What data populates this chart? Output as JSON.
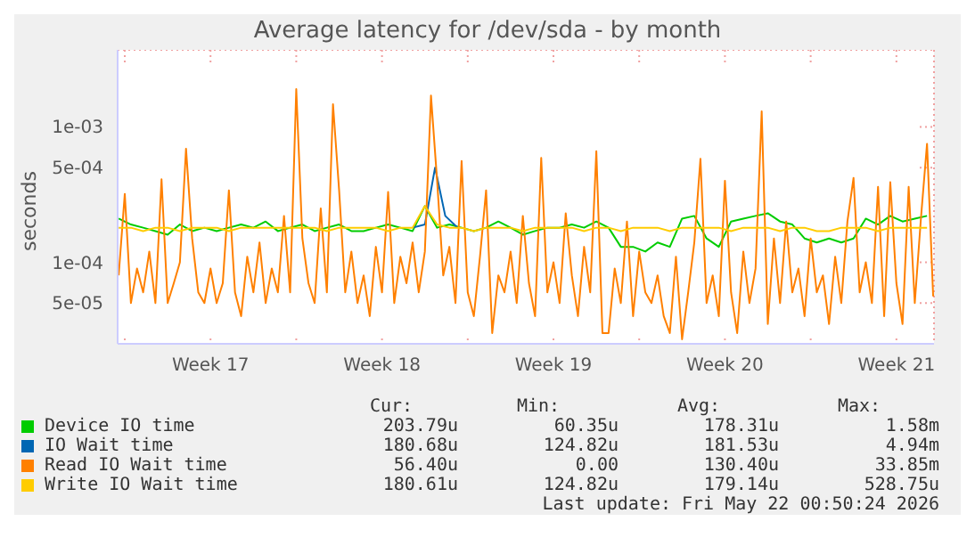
{
  "chart_data": {
    "type": "line",
    "title": "Average latency for /dev/sda - by month",
    "ylabel": "seconds",
    "log": "y",
    "grid": true,
    "legend": "bottom",
    "marker": "none",
    "line_style": "solid",
    "xlim": [
      "2026-04-18T17:00",
      "2026-05-22T00:50"
    ],
    "xticks": [
      {
        "value": "2026-04-19",
        "label": null
      },
      {
        "value": "2026-04-22T12:00",
        "label": "Week 17"
      },
      {
        "value": "2026-04-26",
        "label": null
      },
      {
        "value": "2026-04-29T12:00",
        "label": "Week 18"
      },
      {
        "value": "2026-05-03",
        "label": null
      },
      {
        "value": "2026-05-06T12:00",
        "label": "Week 19"
      },
      {
        "value": "2026-05-10",
        "label": null
      },
      {
        "value": "2026-05-13T12:00",
        "label": "Week 20"
      },
      {
        "value": "2026-05-17",
        "label": null
      },
      {
        "value": "2026-05-20T12:00",
        "label": "Week 21"
      }
    ],
    "ylim": [
      2.5e-05,
      0.0037
    ],
    "yticks": [
      {
        "value": 5e-05,
        "label": "5e-05"
      },
      {
        "value": 0.0001,
        "label": "1e-04"
      },
      {
        "value": 0.0005,
        "label": "5e-04"
      },
      {
        "value": 0.001,
        "label": "1e-03"
      }
    ],
    "annotations": [
      "Cur:",
      "Min:",
      "Avg:",
      "Max:",
      "203.79u",
      "60.35u",
      "178.31u",
      "1.58m",
      "180.68u",
      "124.82u",
      "181.53u",
      "4.94m",
      "56.40u",
      "0.00",
      "130.40u",
      "33.85m",
      "180.61u",
      "124.82u",
      "179.14u",
      "528.75u",
      "Last update: Fri May 22 00:50:24 2026"
    ],
    "series": [
      {
        "name": "Device IO time",
        "color": "#00cc00",
        "x": [
          "2026-04-18T18:00",
          "2026-04-19T06:00",
          "2026-04-19T18:00",
          "2026-04-20T06:00",
          "2026-04-20T18:00",
          "2026-04-21T06:00",
          "2026-04-21T18:00",
          "2026-04-22T06:00",
          "2026-04-22T18:00",
          "2026-04-23T06:00",
          "2026-04-23T18:00",
          "2026-04-24T06:00",
          "2026-04-24T18:00",
          "2026-04-25T06:00",
          "2026-04-25T18:00",
          "2026-04-26T06:00",
          "2026-04-26T18:00",
          "2026-04-27T06:00",
          "2026-04-27T18:00",
          "2026-04-28T06:00",
          "2026-04-28T18:00",
          "2026-04-29T06:00",
          "2026-04-29T18:00",
          "2026-04-30T06:00",
          "2026-04-30T18:00",
          "2026-05-01T06:00",
          "2026-05-01T18:00",
          "2026-05-02T06:00",
          "2026-05-02T18:00",
          "2026-05-03T06:00",
          "2026-05-03T18:00",
          "2026-05-04T06:00",
          "2026-05-04T18:00",
          "2026-05-05T06:00",
          "2026-05-05T18:00",
          "2026-05-06T06:00",
          "2026-05-06T18:00",
          "2026-05-07T06:00",
          "2026-05-07T18:00",
          "2026-05-08T06:00",
          "2026-05-08T18:00",
          "2026-05-09T06:00",
          "2026-05-09T18:00",
          "2026-05-10T06:00",
          "2026-05-10T18:00",
          "2026-05-11T06:00",
          "2026-05-11T18:00",
          "2026-05-12T06:00",
          "2026-05-12T18:00",
          "2026-05-13T06:00",
          "2026-05-13T18:00",
          "2026-05-14T06:00",
          "2026-05-14T18:00",
          "2026-05-15T06:00",
          "2026-05-15T18:00",
          "2026-05-16T06:00",
          "2026-05-16T18:00",
          "2026-05-17T06:00",
          "2026-05-17T18:00",
          "2026-05-18T06:00",
          "2026-05-18T18:00",
          "2026-05-19T06:00",
          "2026-05-19T18:00",
          "2026-05-20T06:00",
          "2026-05-20T18:00",
          "2026-05-21T06:00",
          "2026-05-21T18:00"
        ],
        "values": [
          0.00021,
          0.00019,
          0.00018,
          0.00017,
          0.00016,
          0.00019,
          0.00017,
          0.00018,
          0.00017,
          0.00018,
          0.00019,
          0.00018,
          0.0002,
          0.00017,
          0.00018,
          0.00019,
          0.00017,
          0.00018,
          0.00019,
          0.00017,
          0.00017,
          0.00018,
          0.00019,
          0.00018,
          0.00017,
          0.00026,
          0.00018,
          0.00019,
          0.00018,
          0.00017,
          0.00018,
          0.0002,
          0.00018,
          0.00016,
          0.00017,
          0.00018,
          0.00018,
          0.00019,
          0.00018,
          0.0002,
          0.00018,
          0.00013,
          0.00013,
          0.00012,
          0.00014,
          0.00013,
          0.00021,
          0.00022,
          0.00015,
          0.00013,
          0.0002,
          0.00021,
          0.00022,
          0.00023,
          0.0002,
          0.00019,
          0.00015,
          0.00014,
          0.00015,
          0.00014,
          0.00015,
          0.00021,
          0.00019,
          0.00022,
          0.0002,
          0.00021,
          0.00022
        ]
      },
      {
        "name": "IO Wait time",
        "color": "#0066b3",
        "x": [
          "2026-04-30T18:00",
          "2026-05-01T06:00",
          "2026-05-01T16:00",
          "2026-05-02T02:00",
          "2026-05-02T14:00"
        ],
        "values": [
          0.00018,
          0.00019,
          0.0005,
          0.00022,
          0.00018
        ]
      },
      {
        "name": "Read IO Wait time",
        "color": "#ff8000",
        "x": [
          "2026-04-18T18:00",
          "2026-04-19T00:00",
          "2026-04-19T06:00",
          "2026-04-19T12:00",
          "2026-04-19T18:00",
          "2026-04-20T00:00",
          "2026-04-20T06:00",
          "2026-04-20T12:00",
          "2026-04-20T18:00",
          "2026-04-21T00:00",
          "2026-04-21T06:00",
          "2026-04-21T12:00",
          "2026-04-21T18:00",
          "2026-04-22T00:00",
          "2026-04-22T06:00",
          "2026-04-22T12:00",
          "2026-04-22T18:00",
          "2026-04-23T00:00",
          "2026-04-23T06:00",
          "2026-04-23T12:00",
          "2026-04-23T18:00",
          "2026-04-24T00:00",
          "2026-04-24T06:00",
          "2026-04-24T12:00",
          "2026-04-24T18:00",
          "2026-04-25T00:00",
          "2026-04-25T06:00",
          "2026-04-25T12:00",
          "2026-04-25T18:00",
          "2026-04-26T00:00",
          "2026-04-26T06:00",
          "2026-04-26T12:00",
          "2026-04-26T18:00",
          "2026-04-27T00:00",
          "2026-04-27T06:00",
          "2026-04-27T12:00",
          "2026-04-27T18:00",
          "2026-04-28T00:00",
          "2026-04-28T06:00",
          "2026-04-28T12:00",
          "2026-04-28T18:00",
          "2026-04-29T00:00",
          "2026-04-29T06:00",
          "2026-04-29T12:00",
          "2026-04-29T18:00",
          "2026-04-30T00:00",
          "2026-04-30T06:00",
          "2026-04-30T12:00",
          "2026-04-30T18:00",
          "2026-05-01T00:00",
          "2026-05-01T06:00",
          "2026-05-01T12:00",
          "2026-05-01T18:00",
          "2026-05-02T00:00",
          "2026-05-02T06:00",
          "2026-05-02T12:00",
          "2026-05-02T18:00",
          "2026-05-03T00:00",
          "2026-05-03T06:00",
          "2026-05-03T12:00",
          "2026-05-03T18:00",
          "2026-05-04T00:00",
          "2026-05-04T06:00",
          "2026-05-04T12:00",
          "2026-05-04T18:00",
          "2026-05-05T00:00",
          "2026-05-05T06:00",
          "2026-05-05T12:00",
          "2026-05-05T18:00",
          "2026-05-06T00:00",
          "2026-05-06T06:00",
          "2026-05-06T12:00",
          "2026-05-06T18:00",
          "2026-05-07T00:00",
          "2026-05-07T06:00",
          "2026-05-07T12:00",
          "2026-05-07T18:00",
          "2026-05-08T00:00",
          "2026-05-08T06:00",
          "2026-05-08T12:00",
          "2026-05-08T18:00",
          "2026-05-09T00:00",
          "2026-05-09T06:00",
          "2026-05-09T12:00",
          "2026-05-09T18:00",
          "2026-05-10T00:00",
          "2026-05-10T06:00",
          "2026-05-10T12:00",
          "2026-05-10T18:00",
          "2026-05-11T00:00",
          "2026-05-11T06:00",
          "2026-05-11T12:00",
          "2026-05-11T18:00",
          "2026-05-12T00:00",
          "2026-05-12T06:00",
          "2026-05-12T12:00",
          "2026-05-12T18:00",
          "2026-05-13T00:00",
          "2026-05-13T06:00",
          "2026-05-13T12:00",
          "2026-05-13T18:00",
          "2026-05-14T00:00",
          "2026-05-14T06:00",
          "2026-05-14T12:00",
          "2026-05-14T18:00",
          "2026-05-15T00:00",
          "2026-05-15T06:00",
          "2026-05-15T12:00",
          "2026-05-15T18:00",
          "2026-05-16T00:00",
          "2026-05-16T06:00",
          "2026-05-16T12:00",
          "2026-05-16T18:00",
          "2026-05-17T00:00",
          "2026-05-17T06:00",
          "2026-05-17T12:00",
          "2026-05-17T18:00",
          "2026-05-18T00:00",
          "2026-05-18T06:00",
          "2026-05-18T12:00",
          "2026-05-18T18:00",
          "2026-05-19T00:00",
          "2026-05-19T06:00",
          "2026-05-19T12:00",
          "2026-05-19T18:00",
          "2026-05-20T00:00",
          "2026-05-20T06:00",
          "2026-05-20T12:00",
          "2026-05-20T18:00",
          "2026-05-21T00:00",
          "2026-05-21T06:00",
          "2026-05-21T12:00",
          "2026-05-21T18:00",
          "2026-05-22T00:00"
        ],
        "values": [
          8e-05,
          0.00032,
          5e-05,
          9e-05,
          6e-05,
          0.00012,
          5e-05,
          0.00041,
          5e-05,
          7e-05,
          0.0001,
          0.00069,
          0.00015,
          6e-05,
          5e-05,
          9e-05,
          5e-05,
          7e-05,
          0.00034,
          6e-05,
          4e-05,
          0.00011,
          6e-05,
          0.00014,
          5e-05,
          9e-05,
          6e-05,
          0.00022,
          6e-05,
          0.0019,
          0.00015,
          7e-05,
          5e-05,
          0.00025,
          6e-05,
          0.00147,
          0.00034,
          6e-05,
          0.00012,
          5e-05,
          8e-05,
          4e-05,
          0.00013,
          6e-05,
          0.00033,
          5e-05,
          0.00011,
          7e-05,
          0.00014,
          6e-05,
          0.00012,
          0.0017,
          0.0004,
          8e-05,
          0.00013,
          5e-05,
          0.00056,
          6e-05,
          4e-05,
          0.00011,
          0.00034,
          3e-05,
          8e-05,
          6e-05,
          0.00012,
          5e-05,
          0.00022,
          7e-05,
          4e-05,
          0.00059,
          6e-05,
          0.0001,
          5e-05,
          0.00023,
          8e-05,
          4e-05,
          0.00013,
          6e-05,
          0.00066,
          3e-05,
          3e-05,
          9e-05,
          5e-05,
          0.0002,
          4e-05,
          0.00012,
          6e-05,
          5e-05,
          8e-05,
          4e-05,
          3e-05,
          0.00011,
          2.7e-05,
          6e-05,
          0.00014,
          0.00058,
          5e-05,
          8e-05,
          4e-05,
          0.0004,
          6e-05,
          3e-05,
          0.00012,
          5e-05,
          9e-05,
          0.0013,
          3.5e-05,
          0.00015,
          5e-05,
          0.0002,
          6e-05,
          9e-05,
          4e-05,
          0.00015,
          6e-05,
          8e-05,
          3.5e-05,
          0.00011,
          5e-05,
          0.0002,
          0.00042,
          6e-05,
          0.0001,
          5e-05,
          0.00036,
          4e-05,
          0.00039,
          7e-05,
          3.5e-05,
          0.00036,
          5e-05,
          0.00021,
          0.00075,
          5.6e-05
        ]
      },
      {
        "name": "Write IO Wait time",
        "color": "#ffcc00",
        "x": [
          "2026-04-18T18:00",
          "2026-04-19T06:00",
          "2026-04-19T18:00",
          "2026-04-20T06:00",
          "2026-04-20T18:00",
          "2026-04-21T06:00",
          "2026-04-21T18:00",
          "2026-04-22T06:00",
          "2026-04-22T18:00",
          "2026-04-23T06:00",
          "2026-04-23T18:00",
          "2026-04-24T06:00",
          "2026-04-24T18:00",
          "2026-04-25T06:00",
          "2026-04-25T18:00",
          "2026-04-26T06:00",
          "2026-04-26T18:00",
          "2026-04-27T06:00",
          "2026-04-27T18:00",
          "2026-04-28T06:00",
          "2026-04-28T18:00",
          "2026-04-29T06:00",
          "2026-04-29T18:00",
          "2026-04-30T06:00",
          "2026-04-30T18:00",
          "2026-05-01T06:00",
          "2026-05-01T18:00",
          "2026-05-02T06:00",
          "2026-05-02T18:00",
          "2026-05-03T06:00",
          "2026-05-03T18:00",
          "2026-05-04T06:00",
          "2026-05-04T18:00",
          "2026-05-05T06:00",
          "2026-05-05T18:00",
          "2026-05-06T06:00",
          "2026-05-06T18:00",
          "2026-05-07T06:00",
          "2026-05-07T18:00",
          "2026-05-08T06:00",
          "2026-05-08T18:00",
          "2026-05-09T06:00",
          "2026-05-09T18:00",
          "2026-05-10T06:00",
          "2026-05-10T18:00",
          "2026-05-11T06:00",
          "2026-05-11T18:00",
          "2026-05-12T06:00",
          "2026-05-12T18:00",
          "2026-05-13T06:00",
          "2026-05-13T18:00",
          "2026-05-14T06:00",
          "2026-05-14T18:00",
          "2026-05-15T06:00",
          "2026-05-15T18:00",
          "2026-05-16T06:00",
          "2026-05-16T18:00",
          "2026-05-17T06:00",
          "2026-05-17T18:00",
          "2026-05-18T06:00",
          "2026-05-18T18:00",
          "2026-05-19T06:00",
          "2026-05-19T18:00",
          "2026-05-20T06:00",
          "2026-05-20T18:00",
          "2026-05-21T06:00",
          "2026-05-21T18:00"
        ],
        "values": [
          0.00018,
          0.00018,
          0.00017,
          0.00018,
          0.00018,
          0.00017,
          0.00018,
          0.00018,
          0.00018,
          0.00017,
          0.00018,
          0.00018,
          0.00018,
          0.00018,
          0.00018,
          0.00018,
          0.00018,
          0.00017,
          0.00018,
          0.00018,
          0.00018,
          0.00018,
          0.00017,
          0.00018,
          0.00018,
          0.00026,
          0.00019,
          0.00018,
          0.00018,
          0.00017,
          0.00018,
          0.00018,
          0.00018,
          0.00017,
          0.00018,
          0.00018,
          0.00018,
          0.00018,
          0.00017,
          0.00018,
          0.00018,
          0.00017,
          0.00018,
          0.00018,
          0.00018,
          0.00017,
          0.00018,
          0.00018,
          0.00018,
          0.00018,
          0.00017,
          0.00018,
          0.00018,
          0.00018,
          0.00017,
          0.00018,
          0.00018,
          0.00017,
          0.00017,
          0.00018,
          0.00018,
          0.00018,
          0.00017,
          0.00018,
          0.00018,
          0.00018,
          0.00018
        ]
      }
    ]
  }
}
